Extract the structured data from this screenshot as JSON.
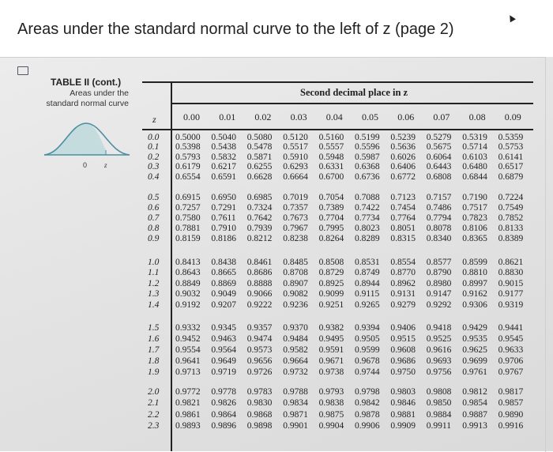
{
  "page": {
    "title": "Areas under the standard normal curve to the left of z (page 2)"
  },
  "icons": {
    "cursor": "mouse-pointer-icon",
    "thumbnail": "image-icon"
  },
  "table": {
    "title": "TABLE II  (cont.)",
    "subtitle_line1": "Areas under the",
    "subtitle_line2": "standard normal curve",
    "curve_labels": {
      "zero": "0",
      "z": "z"
    },
    "header": "Second decimal place in z",
    "z_header": "z",
    "columns": [
      "0.00",
      "0.01",
      "0.02",
      "0.03",
      "0.04",
      "0.05",
      "0.06",
      "0.07",
      "0.08",
      "0.09"
    ],
    "rows": [
      {
        "z": "0.0",
        "v": [
          "0.5000",
          "0.5040",
          "0.5080",
          "0.5120",
          "0.5160",
          "0.5199",
          "0.5239",
          "0.5279",
          "0.5319",
          "0.5359"
        ]
      },
      {
        "z": "0.1",
        "v": [
          "0.5398",
          "0.5438",
          "0.5478",
          "0.5517",
          "0.5557",
          "0.5596",
          "0.5636",
          "0.5675",
          "0.5714",
          "0.5753"
        ]
      },
      {
        "z": "0.2",
        "v": [
          "0.5793",
          "0.5832",
          "0.5871",
          "0.5910",
          "0.5948",
          "0.5987",
          "0.6026",
          "0.6064",
          "0.6103",
          "0.6141"
        ]
      },
      {
        "z": "0.3",
        "v": [
          "0.6179",
          "0.6217",
          "0.6255",
          "0.6293",
          "0.6331",
          "0.6368",
          "0.6406",
          "0.6443",
          "0.6480",
          "0.6517"
        ]
      },
      {
        "z": "0.4",
        "v": [
          "0.6554",
          "0.6591",
          "0.6628",
          "0.6664",
          "0.6700",
          "0.6736",
          "0.6772",
          "0.6808",
          "0.6844",
          "0.6879"
        ]
      },
      {
        "z": "0.5",
        "v": [
          "0.6915",
          "0.6950",
          "0.6985",
          "0.7019",
          "0.7054",
          "0.7088",
          "0.7123",
          "0.7157",
          "0.7190",
          "0.7224"
        ]
      },
      {
        "z": "0.6",
        "v": [
          "0.7257",
          "0.7291",
          "0.7324",
          "0.7357",
          "0.7389",
          "0.7422",
          "0.7454",
          "0.7486",
          "0.7517",
          "0.7549"
        ]
      },
      {
        "z": "0.7",
        "v": [
          "0.7580",
          "0.7611",
          "0.7642",
          "0.7673",
          "0.7704",
          "0.7734",
          "0.7764",
          "0.7794",
          "0.7823",
          "0.7852"
        ]
      },
      {
        "z": "0.8",
        "v": [
          "0.7881",
          "0.7910",
          "0.7939",
          "0.7967",
          "0.7995",
          "0.8023",
          "0.8051",
          "0.8078",
          "0.8106",
          "0.8133"
        ]
      },
      {
        "z": "0.9",
        "v": [
          "0.8159",
          "0.8186",
          "0.8212",
          "0.8238",
          "0.8264",
          "0.8289",
          "0.8315",
          "0.8340",
          "0.8365",
          "0.8389"
        ]
      },
      {
        "z": "1.0",
        "v": [
          "0.8413",
          "0.8438",
          "0.8461",
          "0.8485",
          "0.8508",
          "0.8531",
          "0.8554",
          "0.8577",
          "0.8599",
          "0.8621"
        ]
      },
      {
        "z": "1.1",
        "v": [
          "0.8643",
          "0.8665",
          "0.8686",
          "0.8708",
          "0.8729",
          "0.8749",
          "0.8770",
          "0.8790",
          "0.8810",
          "0.8830"
        ]
      },
      {
        "z": "1.2",
        "v": [
          "0.8849",
          "0.8869",
          "0.8888",
          "0.8907",
          "0.8925",
          "0.8944",
          "0.8962",
          "0.8980",
          "0.8997",
          "0.9015"
        ]
      },
      {
        "z": "1.3",
        "v": [
          "0.9032",
          "0.9049",
          "0.9066",
          "0.9082",
          "0.9099",
          "0.9115",
          "0.9131",
          "0.9147",
          "0.9162",
          "0.9177"
        ]
      },
      {
        "z": "1.4",
        "v": [
          "0.9192",
          "0.9207",
          "0.9222",
          "0.9236",
          "0.9251",
          "0.9265",
          "0.9279",
          "0.9292",
          "0.9306",
          "0.9319"
        ]
      },
      {
        "z": "1.5",
        "v": [
          "0.9332",
          "0.9345",
          "0.9357",
          "0.9370",
          "0.9382",
          "0.9394",
          "0.9406",
          "0.9418",
          "0.9429",
          "0.9441"
        ]
      },
      {
        "z": "1.6",
        "v": [
          "0.9452",
          "0.9463",
          "0.9474",
          "0.9484",
          "0.9495",
          "0.9505",
          "0.9515",
          "0.9525",
          "0.9535",
          "0.9545"
        ]
      },
      {
        "z": "1.7",
        "v": [
          "0.9554",
          "0.9564",
          "0.9573",
          "0.9582",
          "0.9591",
          "0.9599",
          "0.9608",
          "0.9616",
          "0.9625",
          "0.9633"
        ]
      },
      {
        "z": "1.8",
        "v": [
          "0.9641",
          "0.9649",
          "0.9656",
          "0.9664",
          "0.9671",
          "0.9678",
          "0.9686",
          "0.9693",
          "0.9699",
          "0.9706"
        ]
      },
      {
        "z": "1.9",
        "v": [
          "0.9713",
          "0.9719",
          "0.9726",
          "0.9732",
          "0.9738",
          "0.9744",
          "0.9750",
          "0.9756",
          "0.9761",
          "0.9767"
        ]
      },
      {
        "z": "2.0",
        "v": [
          "0.9772",
          "0.9778",
          "0.9783",
          "0.9788",
          "0.9793",
          "0.9798",
          "0.9803",
          "0.9808",
          "0.9812",
          "0.9817"
        ]
      },
      {
        "z": "2.1",
        "v": [
          "0.9821",
          "0.9826",
          "0.9830",
          "0.9834",
          "0.9838",
          "0.9842",
          "0.9846",
          "0.9850",
          "0.9854",
          "0.9857"
        ]
      },
      {
        "z": "2.2",
        "v": [
          "0.9861",
          "0.9864",
          "0.9868",
          "0.9871",
          "0.9875",
          "0.9878",
          "0.9881",
          "0.9884",
          "0.9887",
          "0.9890"
        ]
      },
      {
        "z": "2.3",
        "v": [
          "0.9893",
          "0.9896",
          "0.9898",
          "0.9901",
          "0.9904",
          "0.9906",
          "0.9909",
          "0.9911",
          "0.9913",
          "0.9916"
        ]
      }
    ]
  }
}
